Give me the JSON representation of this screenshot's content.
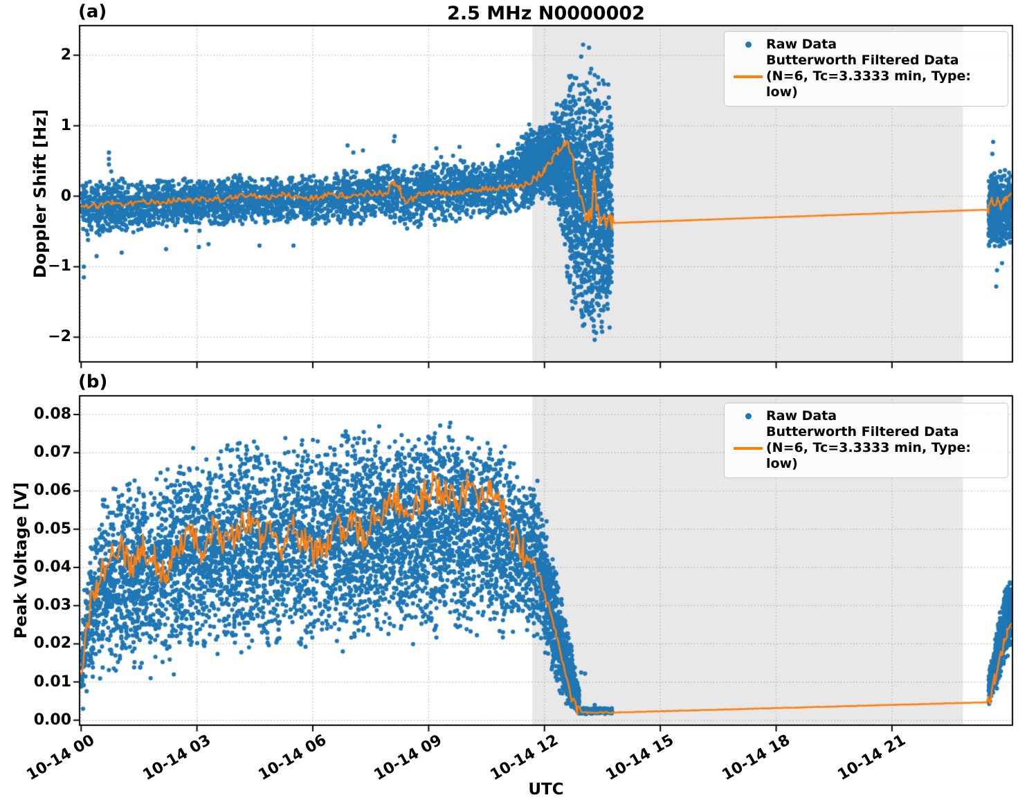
{
  "figure": {
    "title": "2.5 MHz N0000002",
    "xlabel": "UTC",
    "x_axis": {
      "tick_values_hours": [
        0,
        3,
        6,
        9,
        12,
        15,
        18,
        21
      ],
      "tick_labels": [
        "10-14 00",
        "10-14 03",
        "10-14 06",
        "10-14 09",
        "10-14 12",
        "10-14 15",
        "10-14 18",
        "10-14 21"
      ],
      "xlim_hours": [
        -0.04,
        24.12
      ],
      "time_origin_label": "10-14 00"
    }
  },
  "legend": {
    "raw_label": "Raw Data",
    "filtered_label": "Butterworth Filtered Data",
    "filtered_params": "(N=6, Tc=3.3333 min, Type: low)"
  },
  "colors": {
    "raw": "#1f77b4",
    "filtered": "#ff7f0e",
    "shade": "#e8e8e8",
    "grid": "#b5b5b5",
    "spine": "#000000"
  },
  "chart_data": [
    {
      "id": "a",
      "panel_tag": "(a)",
      "type": "scatter",
      "ylabel": "Doppler Shift [Hz]",
      "ylim": [
        -2.35,
        2.42
      ],
      "yticks": {
        "values": [
          2,
          1,
          0,
          -1,
          -2
        ],
        "labels": [
          "2",
          "1",
          "0",
          "−1",
          "−2"
        ]
      },
      "grid": "dotted",
      "shaded_span_hours": {
        "t0": 11.68,
        "t1": 22.84
      },
      "data_gap_hours": {
        "t0": 13.75,
        "t1": 23.5
      },
      "raw_segments": [
        {
          "pts_per_hour": 300,
          "t": [
            0,
            0.5,
            1,
            1.5,
            2,
            2.5,
            3,
            3.5,
            4,
            4.5,
            5,
            5.5,
            6,
            6.5,
            7,
            7.5,
            8,
            8.5,
            9,
            9.5,
            10,
            10.5,
            11,
            11.4
          ],
          "lo": [
            -0.55,
            -0.6,
            -0.55,
            -0.5,
            -0.45,
            -0.5,
            -0.42,
            -0.45,
            -0.4,
            -0.38,
            -0.42,
            -0.4,
            -0.45,
            -0.4,
            -0.45,
            -0.38,
            -0.42,
            -0.5,
            -0.42,
            -0.45,
            -0.32,
            -0.35,
            -0.3,
            -0.25
          ],
          "hi": [
            0.25,
            0.25,
            0.3,
            0.25,
            0.28,
            0.28,
            0.3,
            0.3,
            0.32,
            0.3,
            0.3,
            0.35,
            0.3,
            0.35,
            0.4,
            0.45,
            0.5,
            0.45,
            0.55,
            0.6,
            0.55,
            0.5,
            0.65,
            0.9
          ]
        },
        {
          "pts_per_hour": 1000,
          "t": [
            11.4,
            11.8,
            12.1,
            12.4,
            12.6,
            12.8,
            13.0,
            13.2,
            13.5,
            13.75
          ],
          "lo": [
            -0.25,
            -0.1,
            0.0,
            -0.4,
            -1.3,
            -1.8,
            -2.1,
            -2.15,
            -2.2,
            -1.9
          ],
          "hi": [
            0.9,
            1.0,
            1.05,
            1.45,
            1.75,
            1.9,
            1.95,
            1.9,
            1.85,
            1.6
          ]
        },
        {
          "pts_per_hour": 900,
          "t": [
            23.5,
            23.75,
            24.1
          ],
          "lo": [
            -0.75,
            -0.8,
            -0.7
          ],
          "hi": [
            0.35,
            0.4,
            0.35
          ]
        }
      ],
      "raw_outliers": [
        [
          0.07,
          -1.0
        ],
        [
          0.07,
          -1.15
        ],
        [
          0.4,
          -0.85
        ],
        [
          0.72,
          0.62
        ],
        [
          0.72,
          0.53
        ],
        [
          0.72,
          0.45
        ],
        [
          1.05,
          -0.8
        ],
        [
          2.2,
          -0.75
        ],
        [
          3.05,
          -0.72
        ],
        [
          3.3,
          -0.68
        ],
        [
          4.62,
          -0.7
        ],
        [
          5.5,
          -0.7
        ],
        [
          6.9,
          0.72
        ],
        [
          7.05,
          0.62
        ],
        [
          7.3,
          0.65
        ],
        [
          8.1,
          0.78
        ],
        [
          8.12,
          0.85
        ],
        [
          9.2,
          0.68
        ],
        [
          9.8,
          0.7
        ],
        [
          10.8,
          0.72
        ],
        [
          12.95,
          1.98
        ],
        [
          13.0,
          2.15
        ],
        [
          23.6,
          0.6
        ],
        [
          23.62,
          0.77
        ],
        [
          23.7,
          -1.28
        ],
        [
          23.72,
          -1.05
        ],
        [
          23.85,
          -0.95
        ]
      ],
      "filtered_line": {
        "t": [
          0,
          0.4,
          0.8,
          1.2,
          1.6,
          2,
          2.4,
          2.8,
          3.2,
          3.6,
          4,
          4.4,
          4.8,
          5.2,
          5.6,
          6,
          6.4,
          6.8,
          7.2,
          7.6,
          7.9,
          8.1,
          8.25,
          8.4,
          8.55,
          8.8,
          9.2,
          9.6,
          10,
          10.4,
          10.8,
          11.2,
          11.5,
          11.8,
          12,
          12.2,
          12.35,
          12.5,
          12.62,
          12.75,
          12.85,
          12.95,
          13.05,
          13.15,
          13.22,
          13.28,
          13.34,
          13.42,
          13.5,
          13.6,
          13.7,
          13.75,
          23.5,
          23.58,
          23.66,
          23.74,
          23.82,
          23.9,
          23.98,
          24.1
        ],
        "y": [
          -0.12,
          -0.14,
          -0.09,
          -0.12,
          -0.08,
          -0.09,
          -0.05,
          -0.07,
          -0.03,
          -0.05,
          -0.01,
          0.01,
          -0.02,
          0.02,
          -0.01,
          -0.03,
          0.02,
          0.01,
          0.03,
          0.05,
          0.03,
          0.2,
          0.1,
          -0.14,
          -0.05,
          0.03,
          0.05,
          0.04,
          0.08,
          0.1,
          0.12,
          0.14,
          0.18,
          0.28,
          0.38,
          0.52,
          0.63,
          0.78,
          0.7,
          0.45,
          0.2,
          -0.05,
          -0.25,
          -0.3,
          -0.25,
          0.35,
          -0.1,
          -0.33,
          -0.28,
          -0.4,
          -0.35,
          -0.38,
          -0.19,
          -0.06,
          -0.16,
          -0.04,
          -0.14,
          -0.06,
          -0.02,
          0.04
        ],
        "noise_t": [
          0,
          8.0,
          8.6,
          11.4,
          12.6,
          13.76,
          23.5
        ],
        "noise_amp": [
          0.04,
          0.055,
          0.04,
          0.06,
          0.1,
          0.001,
          0.05
        ]
      }
    },
    {
      "id": "b",
      "panel_tag": "(b)",
      "type": "scatter",
      "ylabel": "Peak Voltage [V]",
      "ylim": [
        -0.0013,
        0.0849
      ],
      "yticks": {
        "values": [
          0.08,
          0.07,
          0.06,
          0.05,
          0.04,
          0.03,
          0.02,
          0.01,
          0.0
        ],
        "labels": [
          "0.08",
          "0.07",
          "0.06",
          "0.05",
          "0.04",
          "0.03",
          "0.02",
          "0.01",
          "0.00"
        ]
      },
      "grid": "dotted",
      "shaded_span_hours": {
        "t0": 11.68,
        "t1": 22.84
      },
      "data_gap_hours": {
        "t0": 13.75,
        "t1": 23.5
      },
      "raw_segments": [
        {
          "pts_per_hour": 480,
          "t": [
            0,
            0.2,
            0.5,
            1,
            1.5,
            2,
            2.5,
            3,
            3.5,
            4,
            4.5,
            5,
            5.5,
            6,
            6.5,
            7,
            7.5,
            8,
            8.5,
            9,
            9.5,
            10,
            10.5,
            11,
            11.3,
            11.6,
            11.9
          ],
          "lo": [
            0.005,
            0.008,
            0.01,
            0.012,
            0.012,
            0.013,
            0.015,
            0.015,
            0.016,
            0.015,
            0.018,
            0.016,
            0.018,
            0.018,
            0.02,
            0.018,
            0.02,
            0.02,
            0.022,
            0.02,
            0.022,
            0.02,
            0.022,
            0.02,
            0.024,
            0.022,
            0.02
          ],
          "hi": [
            0.022,
            0.045,
            0.06,
            0.065,
            0.065,
            0.066,
            0.07,
            0.072,
            0.073,
            0.075,
            0.077,
            0.075,
            0.076,
            0.077,
            0.078,
            0.077,
            0.078,
            0.077,
            0.077,
            0.078,
            0.079,
            0.078,
            0.077,
            0.072,
            0.068,
            0.065,
            0.06
          ]
        },
        {
          "pts_per_hour": 800,
          "t": [
            11.9,
            12.1,
            12.3,
            12.5,
            12.7,
            12.9
          ],
          "lo": [
            0.02,
            0.015,
            0.008,
            0.004,
            0.002,
            0.0019
          ],
          "hi": [
            0.06,
            0.05,
            0.04,
            0.03,
            0.02,
            0.008
          ]
        },
        {
          "pts_per_hour": 600,
          "t": [
            12.9,
            13.75
          ],
          "lo": [
            0.0017,
            0.0017
          ],
          "hi": [
            0.0032,
            0.0032
          ]
        },
        {
          "pts_per_hour": 1000,
          "t": [
            23.5,
            23.65,
            23.8,
            23.95,
            24.1
          ],
          "lo": [
            0.004,
            0.006,
            0.01,
            0.015,
            0.02
          ],
          "hi": [
            0.012,
            0.02,
            0.03,
            0.036,
            0.037
          ]
        }
      ],
      "raw_outliers": [
        [
          0.05,
          0.003
        ],
        [
          0.9,
          0.013
        ],
        [
          1.8,
          0.011
        ],
        [
          2.4,
          0.012
        ],
        [
          12.95,
          0.0125
        ],
        [
          13.05,
          0.0122
        ],
        [
          13.3,
          0.004
        ]
      ],
      "filtered_line": {
        "t": [
          0,
          0.1,
          0.25,
          0.4,
          0.6,
          0.8,
          1,
          1.3,
          1.6,
          1.9,
          2.2,
          2.5,
          2.8,
          3.1,
          3.4,
          3.7,
          4,
          4.3,
          4.6,
          4.9,
          5.2,
          5.5,
          5.8,
          6.1,
          6.4,
          6.7,
          7,
          7.3,
          7.6,
          7.9,
          8.2,
          8.5,
          8.8,
          9.1,
          9.4,
          9.7,
          10,
          10.3,
          10.6,
          10.9,
          11.2,
          11.45,
          11.7,
          11.9,
          12.1,
          12.3,
          12.5,
          12.7,
          12.85,
          12.95,
          13.1,
          13.75,
          23.5,
          23.58,
          23.66,
          23.74,
          23.82,
          23.9,
          23.98,
          24.1
        ],
        "y": [
          0.008,
          0.02,
          0.03,
          0.034,
          0.04,
          0.042,
          0.045,
          0.041,
          0.046,
          0.042,
          0.038,
          0.046,
          0.05,
          0.045,
          0.05,
          0.046,
          0.048,
          0.053,
          0.048,
          0.052,
          0.046,
          0.05,
          0.046,
          0.043,
          0.047,
          0.05,
          0.052,
          0.048,
          0.053,
          0.055,
          0.058,
          0.053,
          0.058,
          0.061,
          0.059,
          0.057,
          0.061,
          0.056,
          0.062,
          0.055,
          0.047,
          0.044,
          0.042,
          0.037,
          0.03,
          0.022,
          0.013,
          0.005,
          0.0028,
          0.0021,
          0.002,
          0.002,
          0.0047,
          0.007,
          0.011,
          0.014,
          0.018,
          0.02,
          0.022,
          0.0245
        ],
        "noise_t": [
          0,
          11.5,
          12.9,
          13.76,
          23.5
        ],
        "noise_amp": [
          0.0042,
          0.0015,
          0.0002,
          5e-05,
          0.002
        ]
      }
    }
  ]
}
